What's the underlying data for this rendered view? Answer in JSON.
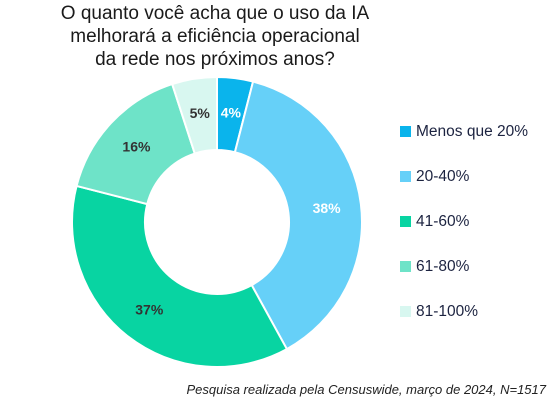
{
  "chart_data": {
    "type": "pie",
    "title": "O quanto você acha que o uso da IA melhorará a eficiência operacional da rede nos próximos anos?",
    "title_lines": [
      "O quanto você acha que o uso da IA",
      "melhorará a eficiência operacional",
      "da rede nos próximos anos?"
    ],
    "donut": true,
    "categories": [
      "Menos que 20%",
      "20-40%",
      "41-60%",
      "61-80%",
      "81-100%"
    ],
    "values": [
      4,
      38,
      37,
      16,
      5
    ],
    "labels": [
      "4%",
      "38%",
      "37%",
      "16%",
      "5%"
    ],
    "colors": [
      "#0ab4ec",
      "#66d0f8",
      "#08d4a2",
      "#6ee3c8",
      "#d8f7f0"
    ],
    "legend_position": "right",
    "footnote": "Pesquisa realizada pela Censuswide, março de 2024, N=1517"
  }
}
